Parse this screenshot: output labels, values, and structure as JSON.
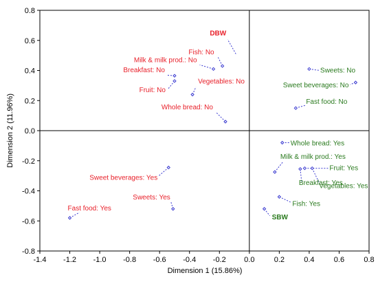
{
  "chart_data": {
    "type": "scatter",
    "xlabel": "Dimension 1 (15.86%)",
    "ylabel": "Dimension 2 (11.96%)",
    "xlim": [
      -1.4,
      0.8
    ],
    "ylim": [
      -0.8,
      0.8
    ],
    "x_ticks": [
      "-1.4",
      "-1.2",
      "-1.0",
      "-0.8",
      "-0.6",
      "-0.4",
      "-0.2",
      "0.0",
      "0.2",
      "0.4",
      "0.6",
      "0.8"
    ],
    "y_ticks": [
      "-0.8",
      "-0.6",
      "-0.4",
      "-0.2",
      "0.0",
      "0.2",
      "0.4",
      "0.6",
      "0.8"
    ],
    "grid": false,
    "reference_lines": {
      "x": 0,
      "y": 0
    },
    "colors": {
      "group_dbw": "#e8202a",
      "group_sbw": "#2a7a1e",
      "marker": "#3a3ad0",
      "leader": "#3a3ad0"
    },
    "points": [
      {
        "label": "DBW",
        "x": -0.09,
        "y": 0.51,
        "group": "dbw",
        "bold": true,
        "marker": false
      },
      {
        "label": "Fish: No",
        "x": -0.18,
        "y": 0.43,
        "group": "dbw"
      },
      {
        "label": "Milk & milk prod.: No",
        "x": -0.24,
        "y": 0.41,
        "group": "dbw"
      },
      {
        "label": "Breakfast: No",
        "x": -0.5,
        "y": 0.365,
        "group": "dbw"
      },
      {
        "label": "Fruit: No",
        "x": -0.5,
        "y": 0.33,
        "group": "dbw"
      },
      {
        "label": "Vegetables: No",
        "x": -0.38,
        "y": 0.24,
        "group": "dbw"
      },
      {
        "label": "Whole bread: No",
        "x": -0.16,
        "y": 0.06,
        "group": "dbw"
      },
      {
        "label": "Sweet beverages: Yes",
        "x": -0.54,
        "y": -0.245,
        "group": "dbw"
      },
      {
        "label": "Sweets: Yes",
        "x": -0.51,
        "y": -0.52,
        "group": "dbw"
      },
      {
        "label": "Fast food: Yes",
        "x": -1.2,
        "y": -0.58,
        "group": "dbw"
      },
      {
        "label": "Sweets: No",
        "x": 0.4,
        "y": 0.41,
        "group": "sbw"
      },
      {
        "label": "Sweet beverages: No",
        "x": 0.71,
        "y": 0.32,
        "group": "sbw"
      },
      {
        "label": "Fast food: No",
        "x": 0.31,
        "y": 0.15,
        "group": "sbw"
      },
      {
        "label": "Whole bread: Yes",
        "x": 0.22,
        "y": -0.08,
        "group": "sbw"
      },
      {
        "label": "Milk & milk prod.: Yes",
        "x": 0.17,
        "y": -0.275,
        "group": "sbw"
      },
      {
        "label": "Breakfast: Yes",
        "x": 0.34,
        "y": -0.255,
        "group": "sbw"
      },
      {
        "label": "Fruit: Yes",
        "x": 0.37,
        "y": -0.25,
        "group": "sbw"
      },
      {
        "label": "Vegetables: Yes",
        "x": 0.42,
        "y": -0.25,
        "group": "sbw"
      },
      {
        "label": "Fish: Yes",
        "x": 0.2,
        "y": -0.44,
        "group": "sbw"
      },
      {
        "label": "SBW",
        "x": 0.1,
        "y": -0.52,
        "group": "sbw",
        "bold": true,
        "marker": true
      }
    ]
  }
}
